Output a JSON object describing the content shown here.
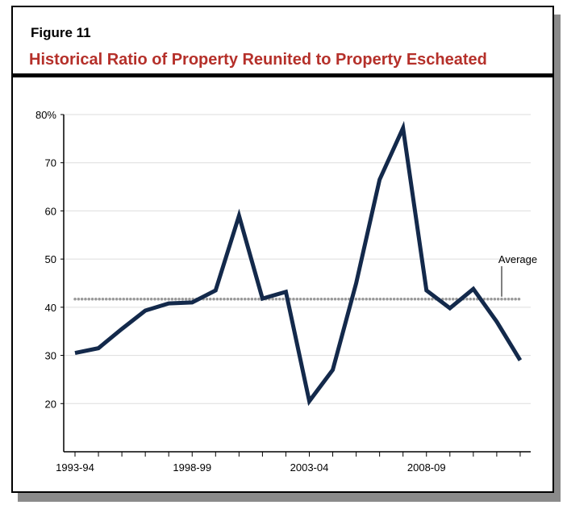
{
  "figure_label": "Figure 11",
  "chart_data": {
    "type": "line",
    "title": "Historical Ratio of Property Reunited to Property Escheated",
    "x": [
      "1993-94",
      "1994-95",
      "1995-96",
      "1996-97",
      "1997-98",
      "1998-99",
      "1999-00",
      "2000-01",
      "2001-02",
      "2002-03",
      "2003-04",
      "2004-05",
      "2005-06",
      "2006-07",
      "2007-08",
      "2008-09",
      "2009-10",
      "2010-11",
      "2011-12",
      "2012-13"
    ],
    "x_tick_labels": [
      "1993-94",
      "1998-99",
      "2003-04",
      "2008-09"
    ],
    "series": [
      {
        "values": [
          30.5,
          31.5,
          35.5,
          39.3,
          40.8,
          41,
          43.5,
          59,
          41.8,
          43.2,
          20.5,
          27,
          45,
          66.5,
          77.2,
          43.5,
          39.8,
          43.8,
          37,
          29
        ],
        "color": "#13294b"
      }
    ],
    "average": {
      "label": "Average",
      "value": 41.7,
      "color": "#999999"
    },
    "y_tick_labels": [
      "80%",
      "70",
      "60",
      "50",
      "40",
      "30",
      "20"
    ],
    "y_ticks": [
      80,
      70,
      60,
      50,
      40,
      30,
      20
    ],
    "ylim": [
      10,
      80
    ],
    "grid": true,
    "xlabel": "",
    "ylabel": ""
  }
}
